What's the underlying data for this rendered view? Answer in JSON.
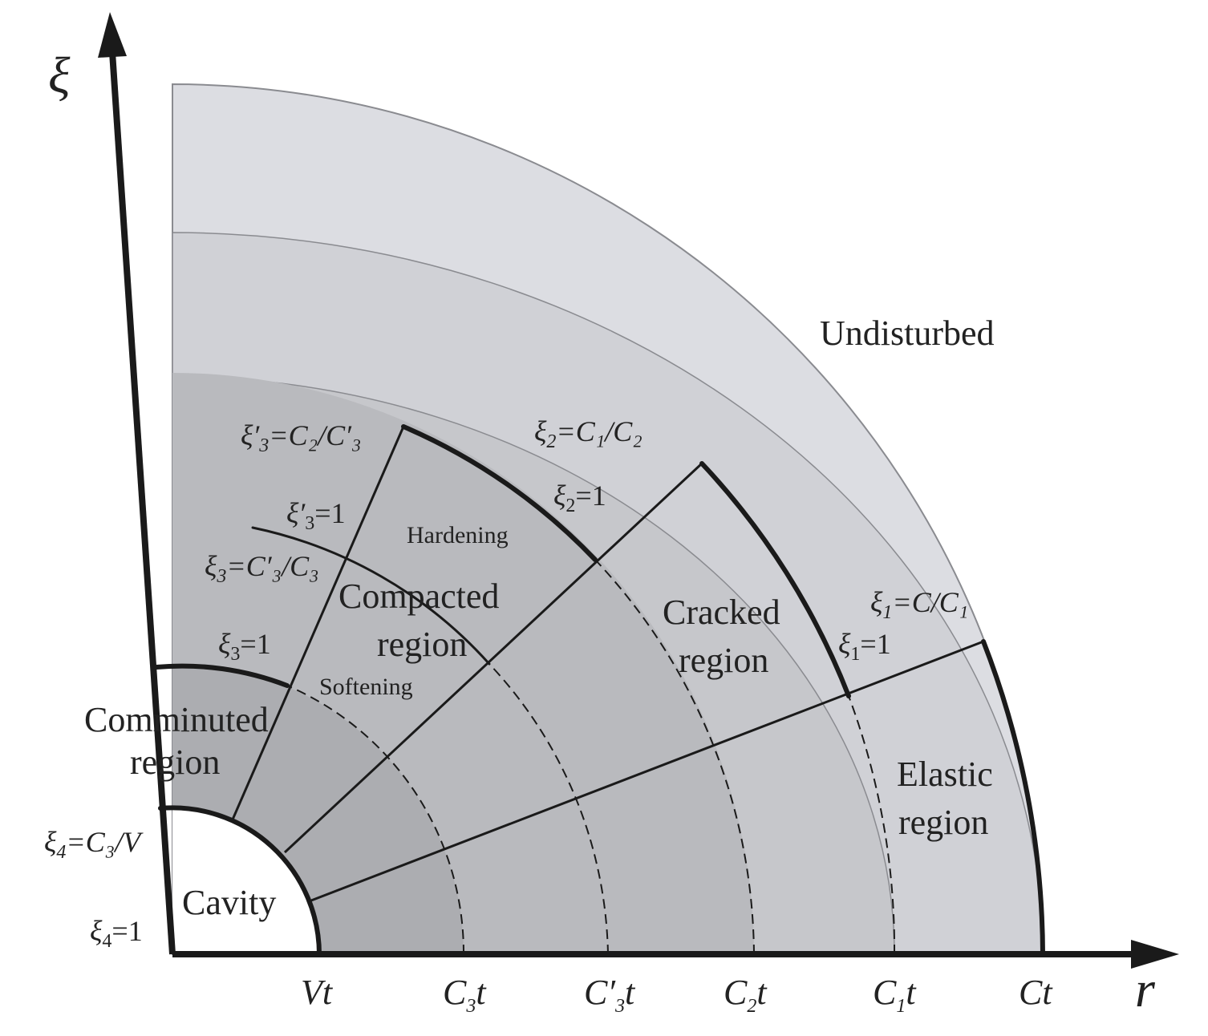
{
  "colors": {
    "undisturbed": "#dcdde2",
    "disturbed_outer": "#d0d1d6",
    "cracked": "#c6c7cb",
    "compacted": "#b9babe",
    "comminuted": "#acadb1",
    "cavity": "#ffffff",
    "lines": "#1a1a1a"
  },
  "regions": {
    "undisturbed": "Undisturbed",
    "compacted_1": "Compacted",
    "compacted_2": "region",
    "cracked_1": "Cracked",
    "cracked_2": "region",
    "elastic_1": "Elastic",
    "elastic_2": "region",
    "comminuted_1": "Comminuted",
    "comminuted_2": "region",
    "cavity": "Cavity",
    "hardening": "Hardening",
    "softening": "Softening"
  },
  "axes": {
    "x_title": "r",
    "y_title": "ξ"
  },
  "ticks": [
    {
      "main": "V",
      "sub": "",
      "prime": "",
      "tail": "t"
    },
    {
      "main": "C",
      "sub": "3",
      "prime": "",
      "tail": "t"
    },
    {
      "main": "C",
      "sub": "3",
      "prime": "′",
      "tail": "t"
    },
    {
      "main": "C",
      "sub": "2",
      "prime": "",
      "tail": "t"
    },
    {
      "main": "C",
      "sub": "1",
      "prime": "",
      "tail": "t"
    },
    {
      "main": "C",
      "sub": "",
      "prime": "",
      "tail": "t"
    }
  ],
  "equations": {
    "xi4_1": {
      "lhs": "ξ",
      "sub": "4",
      "rhs": "=1"
    },
    "xi4_c3v": {
      "lhs": "ξ",
      "sub": "4",
      "rhs": "=C₃/V"
    },
    "xi3_1": {
      "lhs": "ξ",
      "sub": "3",
      "rhs": "=1"
    },
    "xi3_c3pc3": {
      "lhs": "ξ",
      "sub": "3",
      "rhs": "=C′₃/C₃"
    },
    "xi3p_1": {
      "lhs": "ξ′",
      "sub": "3",
      "rhs": "=1"
    },
    "xi3p_c2c3p": {
      "lhs": "ξ′",
      "sub": "3",
      "rhs": "=C₂/C′₃"
    },
    "xi2_1": {
      "lhs": "ξ",
      "sub": "2",
      "rhs": "=1"
    },
    "xi2_c1c2": {
      "lhs": "ξ",
      "sub": "2",
      "rhs": "=C₁/C₂"
    },
    "xi1_1": {
      "lhs": "ξ",
      "sub": "1",
      "rhs": "=1"
    },
    "xi1_cc1": {
      "lhs": "ξ",
      "sub": "1",
      "rhs": "=C/C₁"
    }
  }
}
